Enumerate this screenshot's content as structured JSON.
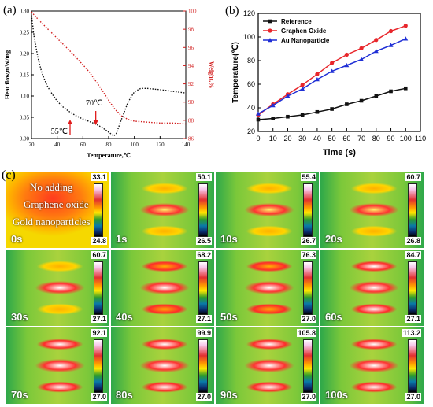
{
  "panel_labels": {
    "a": "(a)",
    "b": "(b)",
    "c": "(c)"
  },
  "chart_data": [
    {
      "panel": "(a)",
      "type": "line",
      "xlabel": "Temperature,℃",
      "ylabel_left": "Heat flow,mW/mg",
      "ylabel_right": "Weight,%",
      "xlim": [
        20,
        140
      ],
      "ylim_left": [
        0.0,
        0.3
      ],
      "ylim_right": [
        86,
        100
      ],
      "x_ticks": [
        "20",
        "40",
        "60",
        "80",
        "100",
        "120",
        "140"
      ],
      "y_left_ticks": [
        "0.00",
        "0.05",
        "0.10",
        "0.15",
        "0.20",
        "0.25",
        "0.30"
      ],
      "y_right_ticks": [
        "86",
        "88",
        "90",
        "92",
        "94",
        "96",
        "98",
        "100"
      ],
      "series": [
        {
          "axis": "left",
          "color": "#111111",
          "style": "dotted",
          "x": [
            20,
            22,
            25,
            28,
            32,
            36,
            40,
            45,
            50,
            55,
            60,
            65,
            70,
            75,
            80,
            84,
            86,
            90,
            95,
            100,
            105,
            110,
            120,
            130,
            140
          ],
          "y": [
            0.29,
            0.24,
            0.19,
            0.155,
            0.125,
            0.105,
            0.088,
            0.073,
            0.062,
            0.053,
            0.046,
            0.04,
            0.034,
            0.026,
            0.015,
            0.006,
            0.012,
            0.045,
            0.085,
            0.11,
            0.118,
            0.118,
            0.115,
            0.111,
            0.107
          ]
        },
        {
          "axis": "right",
          "color": "#d11b1b",
          "style": "dotted",
          "x": [
            20,
            25,
            30,
            40,
            50,
            60,
            65,
            70,
            75,
            80,
            85,
            90,
            95,
            100,
            110,
            120,
            130,
            140
          ],
          "y": [
            99.9,
            99.1,
            98.4,
            97.0,
            95.6,
            94.1,
            93.3,
            92.3,
            91.3,
            90.2,
            89.2,
            88.5,
            88.1,
            87.9,
            87.8,
            87.7,
            87.7,
            87.6
          ]
        }
      ],
      "annotations": [
        {
          "text": "55℃",
          "x": 50
        },
        {
          "text": "70℃",
          "x": 70
        }
      ]
    },
    {
      "panel": "(b)",
      "type": "line",
      "xlabel": "Time (s)",
      "ylabel": "Temperature(℃)",
      "xlim": [
        0,
        110
      ],
      "ylim": [
        20,
        120
      ],
      "x_ticks": [
        "0",
        "10",
        "20",
        "30",
        "40",
        "50",
        "60",
        "70",
        "80",
        "90",
        "100",
        "110"
      ],
      "y_ticks": [
        "20",
        "40",
        "60",
        "80",
        "100",
        "120"
      ],
      "x": [
        0,
        10,
        20,
        30,
        40,
        50,
        60,
        70,
        80,
        90,
        100
      ],
      "series": [
        {
          "name": "Reference",
          "color": "#111111",
          "marker": "square",
          "values": [
            30,
            31,
            32.5,
            34,
            36.5,
            39,
            43,
            46,
            50,
            54,
            56.5
          ]
        },
        {
          "name": "Graphen Oxide",
          "color": "#e8262b",
          "marker": "circle",
          "values": [
            34,
            43,
            51.5,
            59.5,
            68.5,
            78,
            85,
            90.5,
            97.5,
            105,
            109.5
          ]
        },
        {
          "name": "Au Nanoparticle",
          "color": "#1f2fd6",
          "marker": "triangle",
          "values": [
            35,
            42,
            50,
            56,
            64,
            71,
            76,
            81,
            88,
            93,
            98.5
          ]
        }
      ],
      "legend": "top-left"
    }
  ],
  "thermal": {
    "first_tile_labels": [
      "No adding",
      "Graphene oxide",
      "Gold nanoparticles"
    ],
    "tiles": [
      {
        "time": "0s",
        "max": "33.1",
        "min": "24.8"
      },
      {
        "time": "1s",
        "max": "50.1",
        "min": "26.5"
      },
      {
        "time": "10s",
        "max": "55.4",
        "min": "26.7"
      },
      {
        "time": "20s",
        "max": "60.7",
        "min": "26.8"
      },
      {
        "time": "30s",
        "max": "60.7",
        "min": "27.1"
      },
      {
        "time": "40s",
        "max": "68.2",
        "min": "27.1"
      },
      {
        "time": "50s",
        "max": "76.3",
        "min": "27.0"
      },
      {
        "time": "60s",
        "max": "84.7",
        "min": "27.1"
      },
      {
        "time": "70s",
        "max": "92.1",
        "min": "27.0"
      },
      {
        "time": "80s",
        "max": "99.9",
        "min": "27.0"
      },
      {
        "time": "90s",
        "max": "105.8",
        "min": "27.0"
      },
      {
        "time": "100s",
        "max": "113.2",
        "min": "27.0"
      }
    ]
  }
}
